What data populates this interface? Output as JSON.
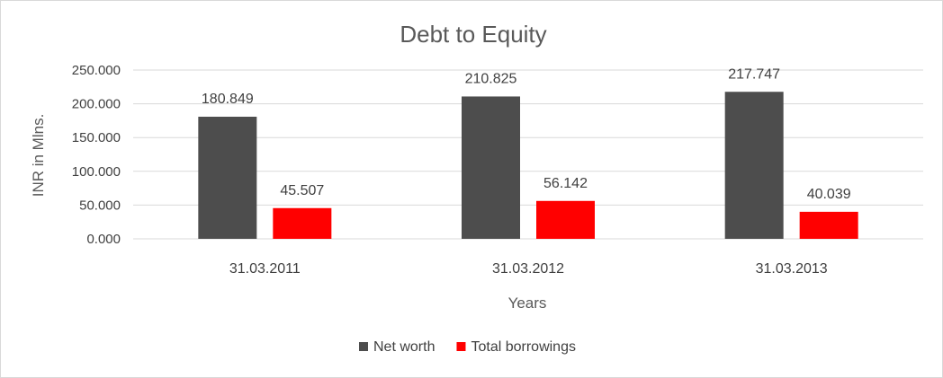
{
  "chart_data": {
    "type": "bar",
    "title": "Debt to Equity",
    "xlabel": "Years",
    "ylabel": "INR in Mlns.",
    "categories": [
      "31.03.2011",
      "31.03.2012",
      "31.03.2013"
    ],
    "series": [
      {
        "name": "Net worth",
        "values": [
          180.849,
          210.825,
          217.747
        ],
        "color": "#4d4d4d"
      },
      {
        "name": "Total borrowings",
        "values": [
          45.507,
          56.142,
          40.039
        ],
        "color": "#ff0000"
      }
    ],
    "ylim": [
      0,
      250
    ],
    "yticks": [
      "0.000",
      "50.000",
      "100.000",
      "150.000",
      "200.000",
      "250.000"
    ],
    "data_labels": [
      [
        "180.849",
        "210.825",
        "217.747"
      ],
      [
        "45.507",
        "56.142",
        "40.039"
      ]
    ],
    "grid": true,
    "legend": "bottom",
    "gridline_color": "#d9d9d9"
  }
}
